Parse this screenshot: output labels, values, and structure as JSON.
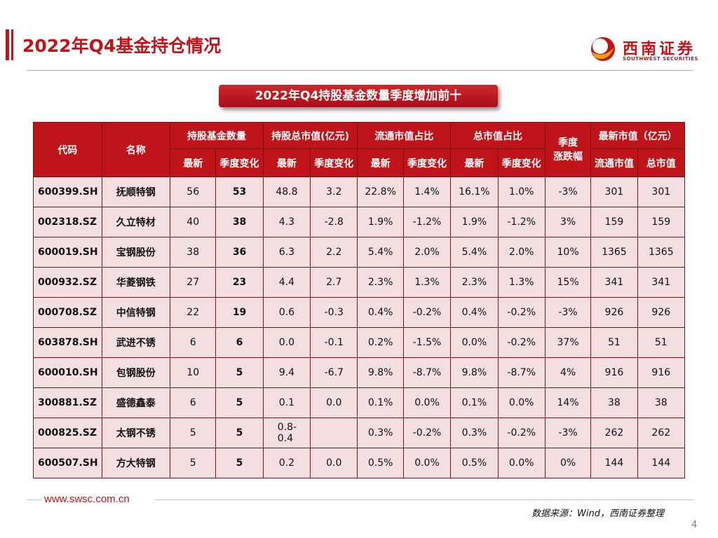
{
  "page": {
    "title": "2022年Q4基金持仓情况",
    "subtitle": "2022年Q4持股基金数量季度增加前十",
    "page_number": "4"
  },
  "logo": {
    "name_cn": "西南证券",
    "name_en": "SOUTHWEST SECURITIES"
  },
  "footer": {
    "url": "www.swsc.com.cn",
    "source": "数据来源：Wind，西南证券整理"
  },
  "colors": {
    "brand_red": "#c0141b",
    "row_bg": "#f3dfdf"
  },
  "table": {
    "header_groups": {
      "code": "代码",
      "name": "名称",
      "fund_count": "持股基金数量",
      "total_value": "持股总市值(亿元)",
      "float_ratio": "流通市值占比",
      "cap_ratio": "总市值占比",
      "quarter_change": "季度\n涨跌幅",
      "latest_cap": "最新市值（亿元）"
    },
    "sub_headers": {
      "latest": "最新",
      "qoq": "季度变化",
      "float_cap": "流通市值",
      "total_cap": "总市值"
    },
    "rows": [
      {
        "code": "600399.SH",
        "name": "抚顺特钢",
        "fund_latest": "56",
        "fund_qoq": "53",
        "val_latest": "48.8",
        "val_qoq": "3.2",
        "float_latest": "22.8%",
        "float_qoq": "1.4%",
        "cap_latest": "16.1%",
        "cap_qoq": "1.0%",
        "chg": "-3%",
        "mv_float": "301",
        "mv_total": "301"
      },
      {
        "code": "002318.SZ",
        "name": "久立特材",
        "fund_latest": "40",
        "fund_qoq": "38",
        "val_latest": "4.3",
        "val_qoq": "-2.8",
        "float_latest": "1.9%",
        "float_qoq": "-1.2%",
        "cap_latest": "1.9%",
        "cap_qoq": "-1.2%",
        "chg": "3%",
        "mv_float": "159",
        "mv_total": "159"
      },
      {
        "code": "600019.SH",
        "name": "宝钢股份",
        "fund_latest": "38",
        "fund_qoq": "36",
        "val_latest": "6.3",
        "val_qoq": "2.2",
        "float_latest": "5.4%",
        "float_qoq": "2.0%",
        "cap_latest": "5.4%",
        "cap_qoq": "2.0%",
        "chg": "10%",
        "mv_float": "1365",
        "mv_total": "1365"
      },
      {
        "code": "000932.SZ",
        "name": "华菱钢铁",
        "fund_latest": "27",
        "fund_qoq": "23",
        "val_latest": "4.4",
        "val_qoq": "2.7",
        "float_latest": "2.3%",
        "float_qoq": "1.3%",
        "cap_latest": "2.3%",
        "cap_qoq": "1.3%",
        "chg": "15%",
        "mv_float": "341",
        "mv_total": "341"
      },
      {
        "code": "000708.SZ",
        "name": "中信特钢",
        "fund_latest": "22",
        "fund_qoq": "19",
        "val_latest": "0.6",
        "val_qoq": "-0.3",
        "float_latest": "0.4%",
        "float_qoq": "-0.2%",
        "cap_latest": "0.4%",
        "cap_qoq": "-0.2%",
        "chg": "-3%",
        "mv_float": "926",
        "mv_total": "926"
      },
      {
        "code": "603878.SH",
        "name": "武进不锈",
        "fund_latest": "6",
        "fund_qoq": "6",
        "val_latest": "0.0",
        "val_qoq": "-0.1",
        "float_latest": "0.2%",
        "float_qoq": "-1.5%",
        "cap_latest": "0.0%",
        "cap_qoq": "-0.2%",
        "chg": "37%",
        "mv_float": "51",
        "mv_total": "51"
      },
      {
        "code": "600010.SH",
        "name": "包钢股份",
        "fund_latest": "10",
        "fund_qoq": "5",
        "val_latest": "9.4",
        "val_qoq": "-6.7",
        "float_latest": "9.8%",
        "float_qoq": "-8.7%",
        "cap_latest": "9.8%",
        "cap_qoq": "-8.7%",
        "chg": "4%",
        "mv_float": "916",
        "mv_total": "916"
      },
      {
        "code": "300881.SZ",
        "name": "盛德鑫泰",
        "fund_latest": "6",
        "fund_qoq": "5",
        "val_latest": "0.1",
        "val_qoq": "0.0",
        "float_latest": "0.1%",
        "float_qoq": "0.0%",
        "cap_latest": "0.1%",
        "cap_qoq": "0.0%",
        "chg": "14%",
        "mv_float": "38",
        "mv_total": "38"
      },
      {
        "code": "000825.SZ",
        "name": "太钢不锈",
        "fund_latest": "5",
        "fund_qoq": "5",
        "val_latest": "0.8-0.4",
        "val_qoq": "",
        "float_latest": "0.3%",
        "float_qoq": "-0.2%",
        "cap_latest": "0.3%",
        "cap_qoq": "-0.2%",
        "chg": "-3%",
        "mv_float": "262",
        "mv_total": "262"
      },
      {
        "code": "600507.SH",
        "name": "方大特钢",
        "fund_latest": "5",
        "fund_qoq": "5",
        "val_latest": "0.2",
        "val_qoq": "0.0",
        "float_latest": "0.5%",
        "float_qoq": "0.0%",
        "cap_latest": "0.5%",
        "cap_qoq": "0.0%",
        "chg": "0%",
        "mv_float": "144",
        "mv_total": "144"
      }
    ]
  }
}
